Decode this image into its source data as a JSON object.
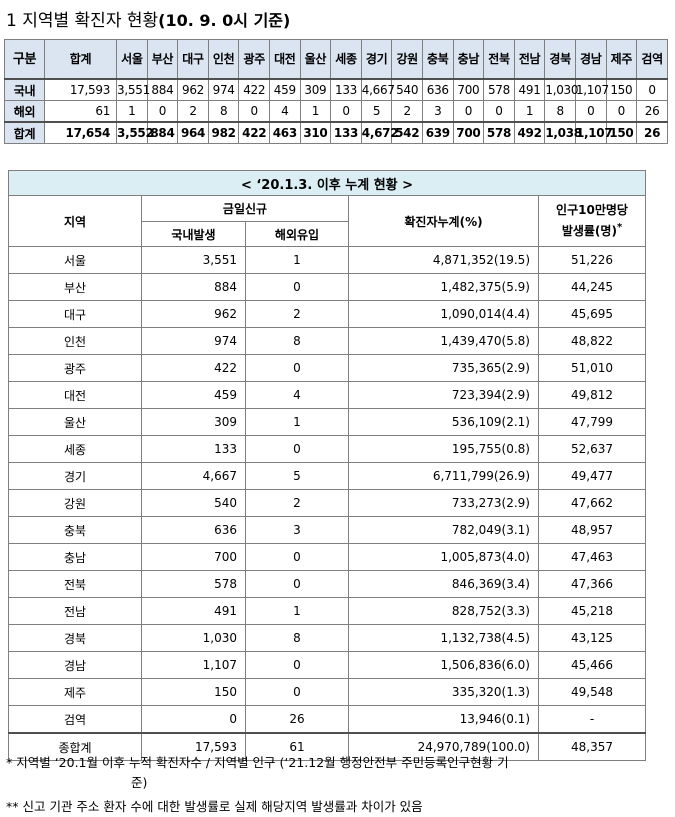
{
  "title": {
    "prefix": "1 지역별 확진자 현황",
    "date": "(10. 9. 0시 기준)"
  },
  "regional_table": {
    "header": [
      "구분",
      "합계",
      "서울",
      "부산",
      "대구",
      "인천",
      "광주",
      "대전",
      "울산",
      "세종",
      "경기",
      "강원",
      "충북",
      "충남",
      "전북",
      "전남",
      "경북",
      "경남",
      "제주",
      "검역"
    ],
    "rows": [
      {
        "label": "국내",
        "values": [
          "17,593",
          "3,551",
          "884",
          "962",
          "974",
          "422",
          "459",
          "309",
          "133",
          "4,667",
          "540",
          "636",
          "700",
          "578",
          "491",
          "1,030",
          "1,107",
          "150",
          "0"
        ]
      },
      {
        "label": "해외",
        "values": [
          "61",
          "1",
          "0",
          "2",
          "8",
          "0",
          "4",
          "1",
          "0",
          "5",
          "2",
          "3",
          "0",
          "0",
          "1",
          "8",
          "0",
          "0",
          "26"
        ]
      },
      {
        "label": "합계",
        "values": [
          "17,654",
          "3,552",
          "884",
          "964",
          "982",
          "422",
          "463",
          "310",
          "133",
          "4,672",
          "542",
          "639",
          "700",
          "578",
          "492",
          "1,038",
          "1,107",
          "150",
          "26"
        ]
      }
    ]
  },
  "cumulative_table": {
    "caption": "< ‘20.1.3. 이후 누계 현황 >",
    "col_region": "지역",
    "col_today": "금일신규",
    "col_domestic": "국내발생",
    "col_overseas": "해외유입",
    "col_cumulative": "확진자누계(%)",
    "col_rate_line1": "인구10만명당",
    "col_rate_star": "*",
    "col_rate_line2": "발생률(명)",
    "rows": [
      [
        "서울",
        "3,551",
        "1",
        "4,871,352(19.5)",
        "51,226"
      ],
      [
        "부산",
        "884",
        "0",
        "1,482,375(5.9)",
        "44,245"
      ],
      [
        "대구",
        "962",
        "2",
        "1,090,014(4.4)",
        "45,695"
      ],
      [
        "인천",
        "974",
        "8",
        "1,439,470(5.8)",
        "48,822"
      ],
      [
        "광주",
        "422",
        "0",
        "735,365(2.9)",
        "51,010"
      ],
      [
        "대전",
        "459",
        "4",
        "723,394(2.9)",
        "49,812"
      ],
      [
        "울산",
        "309",
        "1",
        "536,109(2.1)",
        "47,799"
      ],
      [
        "세종",
        "133",
        "0",
        "195,755(0.8)",
        "52,637"
      ],
      [
        "경기",
        "4,667",
        "5",
        "6,711,799(26.9)",
        "49,477"
      ],
      [
        "강원",
        "540",
        "2",
        "733,273(2.9)",
        "47,662"
      ],
      [
        "충북",
        "636",
        "3",
        "782,049(3.1)",
        "48,957"
      ],
      [
        "충남",
        "700",
        "0",
        "1,005,873(4.0)",
        "47,463"
      ],
      [
        "전북",
        "578",
        "0",
        "846,369(3.4)",
        "47,366"
      ],
      [
        "전남",
        "491",
        "1",
        "828,752(3.3)",
        "45,218"
      ],
      [
        "경북",
        "1,030",
        "8",
        "1,132,738(4.5)",
        "43,125"
      ],
      [
        "경남",
        "1,107",
        "0",
        "1,506,836(6.0)",
        "45,466"
      ],
      [
        "제주",
        "150",
        "0",
        "335,320(1.3)",
        "49,548"
      ],
      [
        "검역",
        "0",
        "26",
        "13,946(0.1)",
        "-"
      ]
    ],
    "grand_total": [
      "종합계",
      "17,593",
      "61",
      "24,970,789(100.0)",
      "48,357"
    ]
  },
  "notes": {
    "note1": "* 지역별 ‘20.1월 이후 누적 확진자수 / 지역별 인구 (‘21.12월 행정안전부 주민등록인구현황 기",
    "note1_cont": "준)",
    "note2": "** 신고 기관 주소 환자 수에 대한 발생률로 실제 해당지역 발생률과 차이가 있음"
  }
}
